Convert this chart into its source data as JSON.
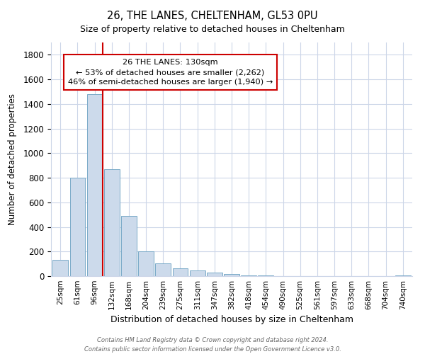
{
  "title": "26, THE LANES, CHELTENHAM, GL53 0PU",
  "subtitle": "Size of property relative to detached houses in Cheltenham",
  "xlabel": "Distribution of detached houses by size in Cheltenham",
  "ylabel": "Number of detached properties",
  "bar_labels": [
    "25sqm",
    "61sqm",
    "96sqm",
    "132sqm",
    "168sqm",
    "204sqm",
    "239sqm",
    "275sqm",
    "311sqm",
    "347sqm",
    "382sqm",
    "418sqm",
    "454sqm",
    "490sqm",
    "525sqm",
    "561sqm",
    "597sqm",
    "633sqm",
    "668sqm",
    "704sqm",
    "740sqm"
  ],
  "bar_values": [
    130,
    800,
    1480,
    870,
    490,
    200,
    105,
    65,
    48,
    28,
    18,
    5,
    3,
    2,
    1,
    1,
    0,
    0,
    0,
    0,
    8
  ],
  "bar_color": "#ccdaeb",
  "bar_edge_color": "#7aaac8",
  "vline_x_index": 2,
  "vline_color": "#cc0000",
  "ylim": [
    0,
    1900
  ],
  "yticks": [
    0,
    200,
    400,
    600,
    800,
    1000,
    1200,
    1400,
    1600,
    1800
  ],
  "annotation_title": "26 THE LANES: 130sqm",
  "annotation_line1": "← 53% of detached houses are smaller (2,262)",
  "annotation_line2": "46% of semi-detached houses are larger (1,940) →",
  "annotation_box_color": "#ffffff",
  "annotation_box_edge": "#cc0000",
  "footer_line1": "Contains HM Land Registry data © Crown copyright and database right 2024.",
  "footer_line2": "Contains public sector information licensed under the Open Government Licence v3.0.",
  "bg_color": "#ffffff",
  "grid_color": "#ccd6e8"
}
